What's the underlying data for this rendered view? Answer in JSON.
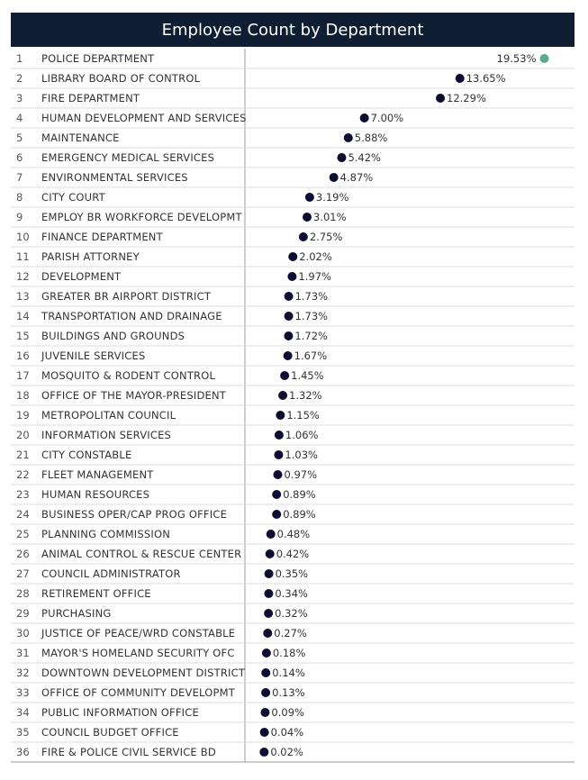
{
  "chart_data": {
    "type": "scatter",
    "title": "Employee Count by Department",
    "marker_color": "#0d0d33",
    "highlight_color": "#5aab8c",
    "header_bg": "#0f1e33",
    "xlim": [
      0,
      20
    ],
    "unit": "%",
    "rows": [
      {
        "rank": "1",
        "department": "POLICE DEPARTMENT",
        "value": 19.53,
        "label": "19.53%"
      },
      {
        "rank": "2",
        "department": "LIBRARY BOARD OF CONTROL",
        "value": 13.65,
        "label": "13.65%"
      },
      {
        "rank": "3",
        "department": "FIRE DEPARTMENT",
        "value": 12.29,
        "label": "12.29%"
      },
      {
        "rank": "4",
        "department": "HUMAN DEVELOPMENT AND SERVICES",
        "value": 7.0,
        "label": "7.00%"
      },
      {
        "rank": "5",
        "department": "MAINTENANCE",
        "value": 5.88,
        "label": "5.88%"
      },
      {
        "rank": "6",
        "department": "EMERGENCY MEDICAL SERVICES",
        "value": 5.42,
        "label": "5.42%"
      },
      {
        "rank": "7",
        "department": "ENVIRONMENTAL SERVICES",
        "value": 4.87,
        "label": "4.87%"
      },
      {
        "rank": "8",
        "department": "CITY COURT",
        "value": 3.19,
        "label": "3.19%"
      },
      {
        "rank": "9",
        "department": "EMPLOY BR WORKFORCE DEVELOPMT",
        "value": 3.01,
        "label": "3.01%"
      },
      {
        "rank": "10",
        "department": "FINANCE DEPARTMENT",
        "value": 2.75,
        "label": "2.75%"
      },
      {
        "rank": "11",
        "department": "PARISH ATTORNEY",
        "value": 2.02,
        "label": "2.02%"
      },
      {
        "rank": "12",
        "department": "DEVELOPMENT",
        "value": 1.97,
        "label": "1.97%"
      },
      {
        "rank": "13",
        "department": "GREATER BR AIRPORT DISTRICT",
        "value": 1.73,
        "label": "1.73%"
      },
      {
        "rank": "14",
        "department": "TRANSPORTATION AND DRAINAGE",
        "value": 1.73,
        "label": "1.73%"
      },
      {
        "rank": "15",
        "department": "BUILDINGS AND GROUNDS",
        "value": 1.72,
        "label": "1.72%"
      },
      {
        "rank": "16",
        "department": "JUVENILE SERVICES",
        "value": 1.67,
        "label": "1.67%"
      },
      {
        "rank": "17",
        "department": "MOSQUITO & RODENT CONTROL",
        "value": 1.45,
        "label": "1.45%"
      },
      {
        "rank": "18",
        "department": "OFFICE OF THE MAYOR-PRESIDENT",
        "value": 1.32,
        "label": "1.32%"
      },
      {
        "rank": "19",
        "department": "METROPOLITAN COUNCIL",
        "value": 1.15,
        "label": "1.15%"
      },
      {
        "rank": "20",
        "department": "INFORMATION SERVICES",
        "value": 1.06,
        "label": "1.06%"
      },
      {
        "rank": "21",
        "department": "CITY CONSTABLE",
        "value": 1.03,
        "label": "1.03%"
      },
      {
        "rank": "22",
        "department": "FLEET MANAGEMENT",
        "value": 0.97,
        "label": "0.97%"
      },
      {
        "rank": "23",
        "department": "HUMAN RESOURCES",
        "value": 0.89,
        "label": "0.89%"
      },
      {
        "rank": "24",
        "department": "BUSINESS OPER/CAP PROG OFFICE",
        "value": 0.89,
        "label": "0.89%"
      },
      {
        "rank": "25",
        "department": "PLANNING COMMISSION",
        "value": 0.48,
        "label": "0.48%"
      },
      {
        "rank": "26",
        "department": "ANIMAL CONTROL & RESCUE CENTER",
        "value": 0.42,
        "label": "0.42%"
      },
      {
        "rank": "27",
        "department": "COUNCIL ADMINISTRATOR",
        "value": 0.35,
        "label": "0.35%"
      },
      {
        "rank": "28",
        "department": "RETIREMENT OFFICE",
        "value": 0.34,
        "label": "0.34%"
      },
      {
        "rank": "29",
        "department": "PURCHASING",
        "value": 0.32,
        "label": "0.32%"
      },
      {
        "rank": "30",
        "department": "JUSTICE OF PEACE/WRD CONSTABLE",
        "value": 0.27,
        "label": "0.27%"
      },
      {
        "rank": "31",
        "department": "MAYOR'S HOMELAND SECURITY OFC",
        "value": 0.18,
        "label": "0.18%"
      },
      {
        "rank": "32",
        "department": "DOWNTOWN DEVELOPMENT DISTRICT",
        "value": 0.14,
        "label": "0.14%"
      },
      {
        "rank": "33",
        "department": "OFFICE OF COMMUNITY DEVELOPMT",
        "value": 0.13,
        "label": "0.13%"
      },
      {
        "rank": "34",
        "department": "PUBLIC INFORMATION OFFICE",
        "value": 0.09,
        "label": "0.09%"
      },
      {
        "rank": "35",
        "department": "COUNCIL BUDGET OFFICE",
        "value": 0.04,
        "label": "0.04%"
      },
      {
        "rank": "36",
        "department": "FIRE & POLICE CIVIL SERVICE BD",
        "value": 0.02,
        "label": "0.02%"
      }
    ]
  }
}
